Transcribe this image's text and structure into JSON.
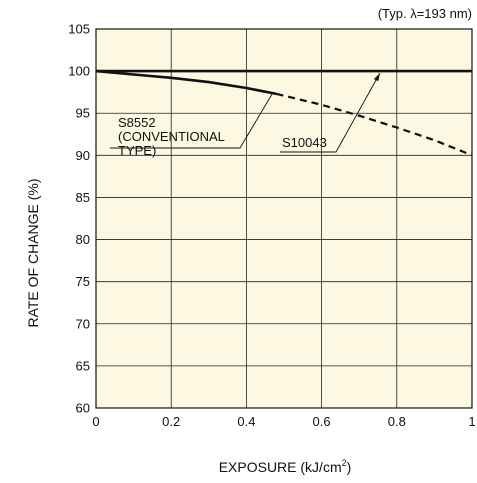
{
  "chart_data": {
    "type": "line",
    "condition_note": "(Typ. λ=193 nm)",
    "xlabel": "EXPOSURE (kJ/cm",
    "xlabel_sup": "2",
    "xlabel_tail": ")",
    "ylabel": "RATE OF CHANGE (%)",
    "xlim": [
      0,
      1
    ],
    "ylim": [
      60,
      105
    ],
    "x_ticks": [
      "0",
      "0.2",
      "0.4",
      "0.6",
      "0.8",
      "1"
    ],
    "y_ticks": [
      "60",
      "65",
      "70",
      "75",
      "80",
      "85",
      "90",
      "95",
      "100",
      "105"
    ],
    "grid": true,
    "plot_background": "#fdf8e1",
    "series": [
      {
        "name_lines": [
          "S8552",
          "(CONVENTIONAL",
          "TYPE)"
        ],
        "solid": {
          "x": [
            0,
            0.1,
            0.2,
            0.3,
            0.4,
            0.48
          ],
          "y": [
            100,
            99.6,
            99.2,
            98.7,
            98.0,
            97.3
          ]
        },
        "dashed": {
          "x": [
            0.48,
            0.6,
            0.7,
            0.8,
            0.9,
            1.0
          ],
          "y": [
            97.3,
            96.0,
            94.7,
            93.3,
            91.8,
            90.0
          ]
        }
      },
      {
        "name_lines": [
          "S10043"
        ],
        "solid": {
          "x": [
            0,
            1
          ],
          "y": [
            100,
            100
          ]
        }
      }
    ]
  }
}
